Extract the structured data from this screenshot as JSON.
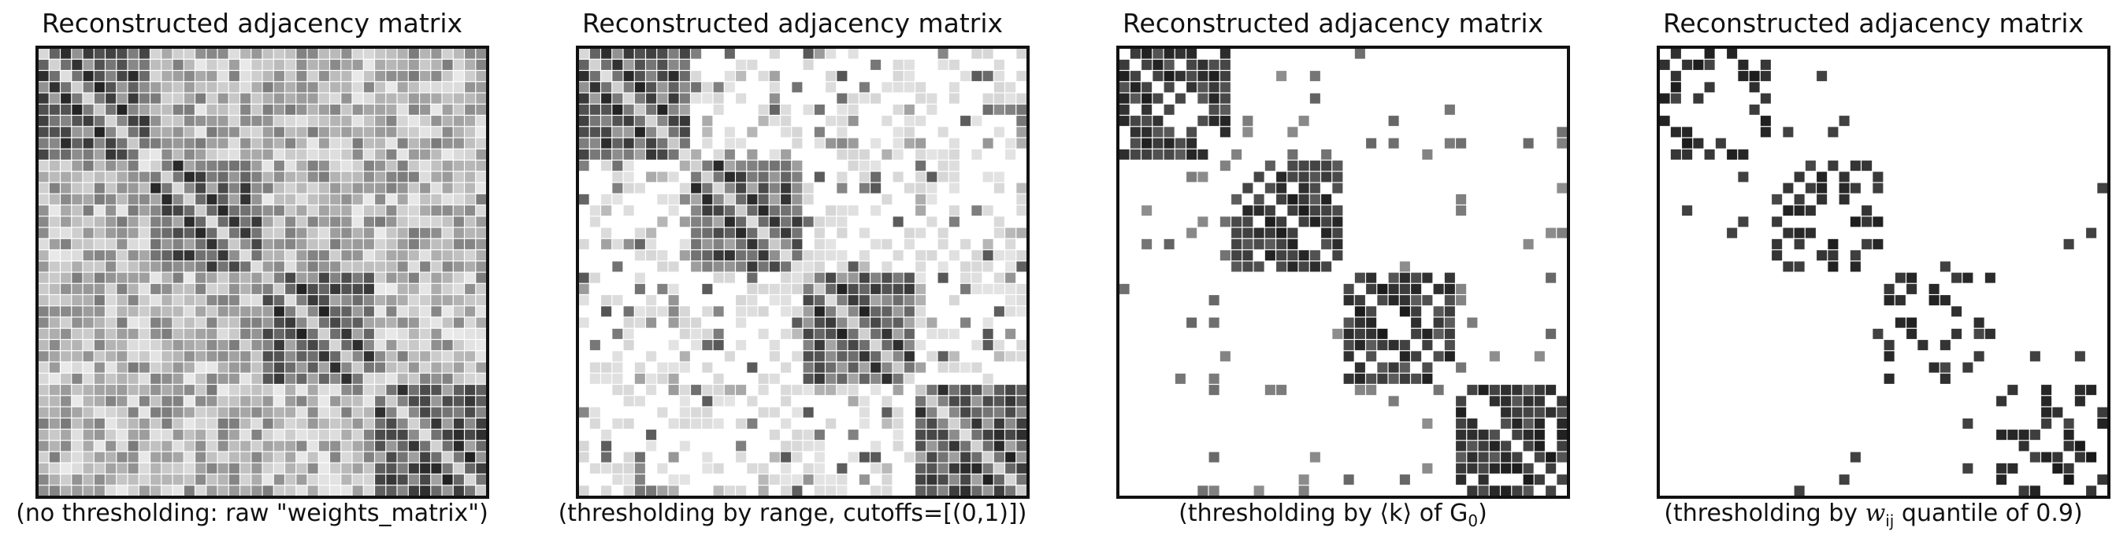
{
  "figure": {
    "panels": [
      {
        "title": "Reconstructed adjacency matrix",
        "caption": "(no thresholding: raw \"weights_matrix\")",
        "mode": "raw"
      },
      {
        "title": "Reconstructed adjacency matrix",
        "caption": "(thresholding by range, cutoffs=[(0,1)])",
        "mode": "range"
      },
      {
        "title": "Reconstructed adjacency matrix",
        "caption": "(thresholding by ⟨k⟩ of G",
        "caption_math": "0",
        "caption_tail": ")",
        "mode": "degree"
      },
      {
        "title": "Reconstructed adjacency matrix",
        "caption": "(thresholding by ",
        "caption_math": "w",
        "caption_math_sub": "ij",
        "caption_tail": " quantile of 0.9)",
        "mode": "quantile"
      }
    ]
  },
  "chart_data": [
    {
      "type": "heatmap",
      "title": "Reconstructed adjacency matrix",
      "xlabel": "(no thresholding: raw \"weights_matrix\")",
      "size": 40,
      "blocks": 4,
      "colormap": "greys",
      "value_range": [
        0,
        1
      ],
      "within_block_mean": 0.65,
      "between_block_mean": 0.3,
      "diagonal_offsets_dark": [
        -2,
        2
      ],
      "grid": false
    },
    {
      "type": "heatmap",
      "title": "Reconstructed adjacency matrix",
      "xlabel": "(thresholding by range, cutoffs=[(0,1)])",
      "size": 40,
      "blocks": 4,
      "colormap": "greys",
      "threshold": "range",
      "cutoffs": [
        [
          0,
          1
        ]
      ],
      "grid": false
    },
    {
      "type": "heatmap",
      "title": "Reconstructed adjacency matrix",
      "xlabel": "(thresholding by ⟨k⟩ of G0)",
      "size": 40,
      "blocks": 4,
      "colormap": "greys",
      "threshold": "average degree of G0",
      "grid": false
    },
    {
      "type": "heatmap",
      "title": "Reconstructed adjacency matrix",
      "xlabel": "(thresholding by w_ij quantile of 0.9)",
      "size": 40,
      "blocks": 4,
      "colormap": "greys",
      "threshold": "quantile",
      "quantile": 0.9,
      "grid": false
    }
  ]
}
